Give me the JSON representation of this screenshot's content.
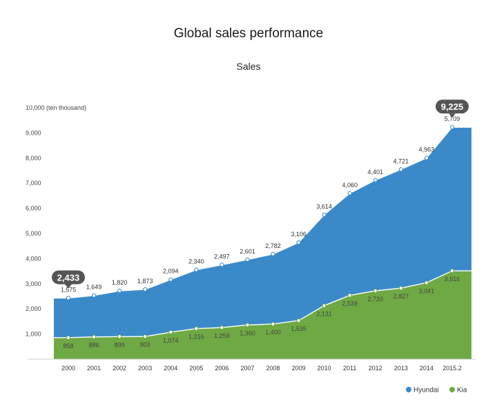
{
  "chart_data": {
    "type": "area",
    "title": "Global sales performance",
    "subtitle": "Sales",
    "ylabel": "10,000 (ten thousand)",
    "ylim": [
      0,
      10000
    ],
    "yticks": [
      "1,000",
      "2,000",
      "3,000",
      "4,000",
      "5,000",
      "6,000",
      "7,000",
      "8,000",
      "9,000"
    ],
    "categories": [
      "2000",
      "2001",
      "2002",
      "2003",
      "2004",
      "2005",
      "2006",
      "2007",
      "2008",
      "2009",
      "2010",
      "2011",
      "2012",
      "2013",
      "2014",
      "2015.2"
    ],
    "series": [
      {
        "name": "Hyundai",
        "color": "#3a8ac9",
        "labels": [
          "1,575",
          "1,649",
          "1,820",
          "1,873",
          "2,094",
          "2,340",
          "2,497",
          "2,601",
          "2,782",
          "3,106",
          "3,614",
          "4,060",
          "4,401",
          "4,721",
          "4,963",
          "5,709"
        ],
        "values": [
          1575,
          1649,
          1820,
          1873,
          2094,
          2340,
          2497,
          2601,
          2782,
          3106,
          3614,
          4060,
          4401,
          4721,
          4963,
          5709
        ]
      },
      {
        "name": "Kia",
        "color": "#6fa944",
        "labels": [
          "858",
          "886",
          "899",
          "903",
          "1,074",
          "1,216",
          "1,259",
          "1,360",
          "1,400",
          "1,535",
          "2,131",
          "2,539",
          "2,720",
          "2,827",
          "3,041",
          "3,516"
        ],
        "values": [
          858,
          886,
          899,
          903,
          1074,
          1216,
          1259,
          1360,
          1400,
          1535,
          2131,
          2539,
          2720,
          2827,
          3041,
          3516
        ]
      }
    ],
    "callouts": {
      "start": "2,433",
      "end": "9,225"
    },
    "legend_position": "bottom-right",
    "grid": false
  }
}
